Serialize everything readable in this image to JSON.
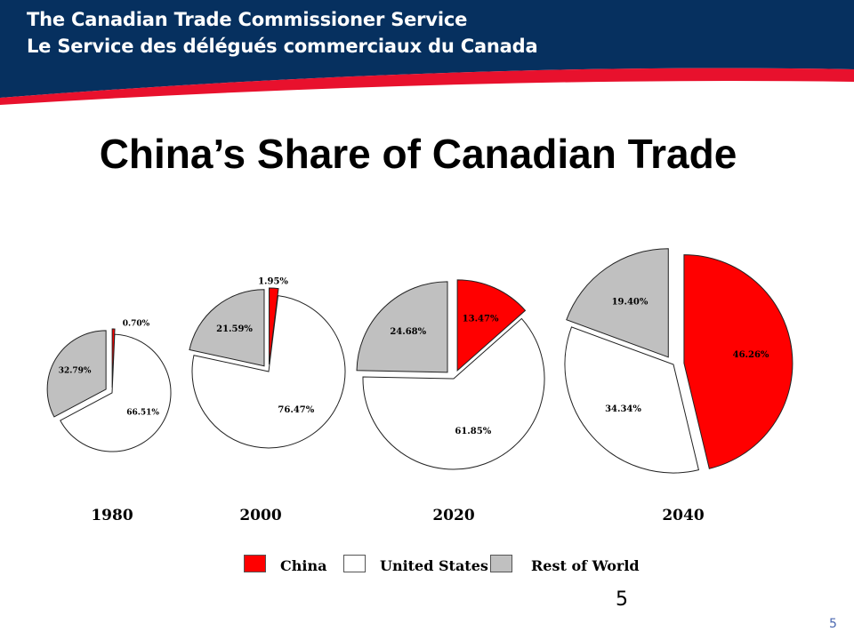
{
  "header": {
    "line1": "The Canadian Trade Commissioner Service",
    "line2": "Le Service des délégués commerciaux du Canada",
    "colors": {
      "navy": "#06305f",
      "red": "#e8112d"
    }
  },
  "title": "China’s Share of Canadian Trade",
  "chart_data": {
    "type": "pie",
    "title": "China’s Share of Canadian Trade",
    "series_order": [
      "China",
      "United States",
      "Rest of World"
    ],
    "colors": {
      "China": "#ff0000",
      "United States": "#ffffff",
      "Rest of World": "#c0c0c0"
    },
    "pies": [
      {
        "year": "1980",
        "values": [
          0.7,
          66.51,
          32.79
        ],
        "labels": [
          "0.70%",
          "66.51%",
          "32.79%"
        ]
      },
      {
        "year": "2000",
        "values": [
          1.95,
          76.47,
          21.59
        ],
        "labels": [
          "1.95%",
          "76.47%",
          "21.59%"
        ]
      },
      {
        "year": "2020",
        "values": [
          13.47,
          61.85,
          24.68
        ],
        "labels": [
          "13.47%",
          "61.85%",
          "24.68%"
        ]
      },
      {
        "year": "2040",
        "values": [
          46.26,
          34.34,
          19.4
        ],
        "labels": [
          "46.26%",
          "34.34%",
          "19.40%"
        ]
      }
    ],
    "legend": [
      {
        "label": "China",
        "color": "#ff0000"
      },
      {
        "label": "United States",
        "color": "#ffffff"
      },
      {
        "label": "Rest of World",
        "color": "#c0c0c0"
      }
    ],
    "legend_position": "bottom"
  },
  "footer": {
    "slide_number_center": "5",
    "slide_number_corner": "5"
  }
}
